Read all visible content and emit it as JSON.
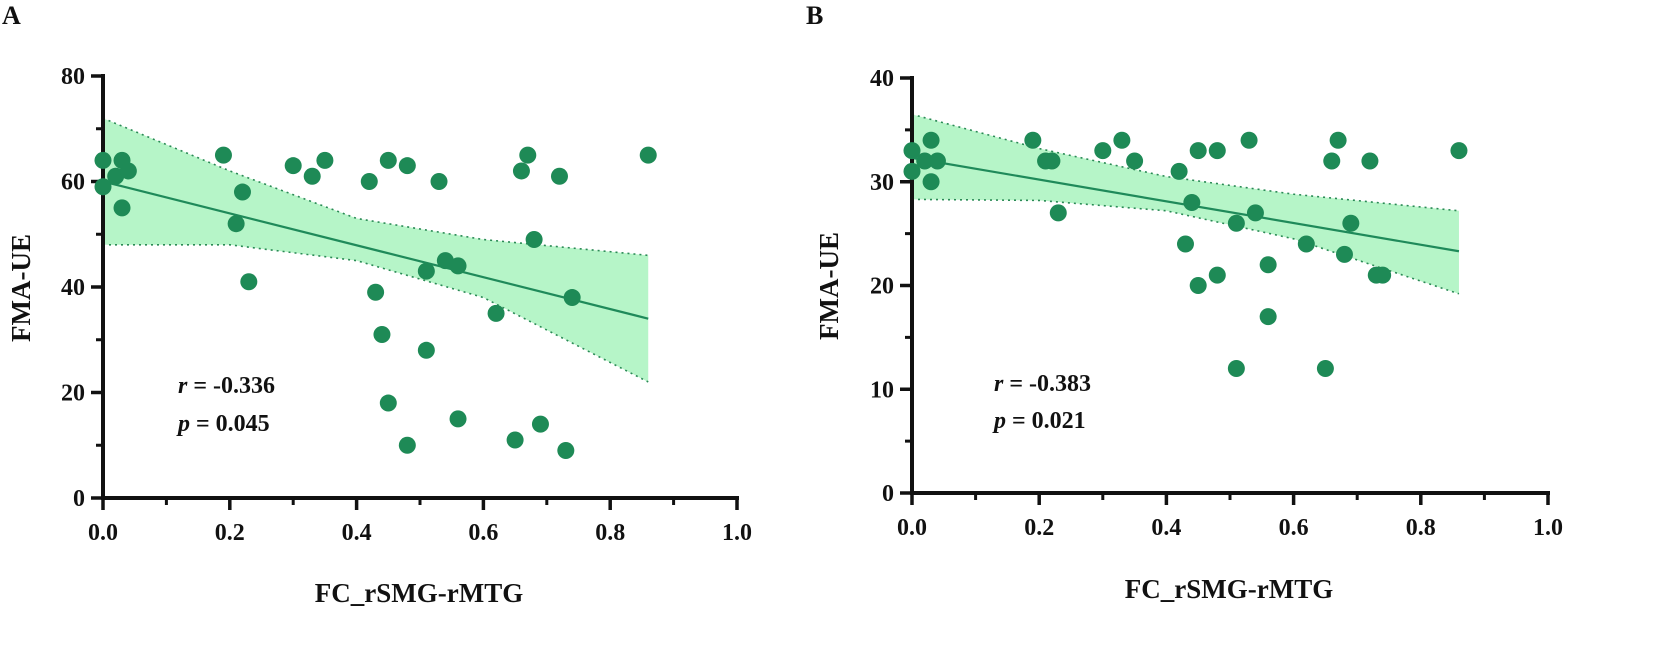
{
  "chart_data": [
    {
      "type": "scatter",
      "panel_label": "A",
      "xlabel": "FC_rSMG-rMTG",
      "ylabel": "FMA-UE",
      "xlim": [
        0,
        1.0
      ],
      "ylim": [
        0,
        80
      ],
      "x_ticks": [
        0.0,
        0.2,
        0.4,
        0.6,
        0.8,
        1.0
      ],
      "x_tick_labels": [
        "0.0",
        "0.2",
        "0.4",
        "0.6",
        "0.8",
        "1.0"
      ],
      "y_ticks": [
        0,
        20,
        40,
        60,
        80
      ],
      "y_tick_labels": [
        "0",
        "20",
        "40",
        "60",
        "80"
      ],
      "regression": {
        "x_range": [
          0,
          0.86
        ],
        "y_start": 60,
        "y_end": 34
      },
      "confidence_band": {
        "x": [
          0,
          0.2,
          0.4,
          0.6,
          0.86
        ],
        "upper": [
          72,
          62,
          53,
          49,
          46
        ],
        "lower": [
          48,
          48,
          45,
          38,
          22
        ]
      },
      "annotation": {
        "r_symbol": "r",
        "r_value": " = -0.336",
        "p_symbol": "p",
        "p_value": " = 0.045"
      },
      "points": [
        {
          "x": 0.0,
          "y": 64
        },
        {
          "x": 0.0,
          "y": 59
        },
        {
          "x": 0.02,
          "y": 61
        },
        {
          "x": 0.03,
          "y": 64
        },
        {
          "x": 0.03,
          "y": 55
        },
        {
          "x": 0.04,
          "y": 62
        },
        {
          "x": 0.19,
          "y": 65
        },
        {
          "x": 0.21,
          "y": 52
        },
        {
          "x": 0.22,
          "y": 58
        },
        {
          "x": 0.23,
          "y": 41
        },
        {
          "x": 0.3,
          "y": 63
        },
        {
          "x": 0.33,
          "y": 61
        },
        {
          "x": 0.35,
          "y": 64
        },
        {
          "x": 0.42,
          "y": 60
        },
        {
          "x": 0.43,
          "y": 39
        },
        {
          "x": 0.44,
          "y": 31
        },
        {
          "x": 0.45,
          "y": 64
        },
        {
          "x": 0.45,
          "y": 18
        },
        {
          "x": 0.48,
          "y": 63
        },
        {
          "x": 0.48,
          "y": 10
        },
        {
          "x": 0.51,
          "y": 43
        },
        {
          "x": 0.51,
          "y": 28
        },
        {
          "x": 0.53,
          "y": 60
        },
        {
          "x": 0.54,
          "y": 45
        },
        {
          "x": 0.56,
          "y": 44
        },
        {
          "x": 0.56,
          "y": 15
        },
        {
          "x": 0.62,
          "y": 35
        },
        {
          "x": 0.65,
          "y": 11
        },
        {
          "x": 0.66,
          "y": 62
        },
        {
          "x": 0.67,
          "y": 65
        },
        {
          "x": 0.68,
          "y": 49
        },
        {
          "x": 0.69,
          "y": 14
        },
        {
          "x": 0.72,
          "y": 61
        },
        {
          "x": 0.73,
          "y": 9
        },
        {
          "x": 0.74,
          "y": 38
        },
        {
          "x": 0.86,
          "y": 65
        }
      ]
    },
    {
      "type": "scatter",
      "panel_label": "B",
      "xlabel": "FC_rSMG-rMTG",
      "ylabel": "FMA-UE",
      "xlim": [
        0,
        1.0
      ],
      "ylim": [
        0,
        40
      ],
      "x_ticks": [
        0.0,
        0.2,
        0.4,
        0.6,
        0.8,
        1.0
      ],
      "x_tick_labels": [
        "0.0",
        "0.2",
        "0.4",
        "0.6",
        "0.8",
        "1.0"
      ],
      "y_ticks": [
        0,
        10,
        20,
        30,
        40
      ],
      "y_tick_labels": [
        "0",
        "10",
        "20",
        "30",
        "40"
      ],
      "regression": {
        "x_range": [
          0,
          0.86
        ],
        "y_start": 32.3,
        "y_end": 23.3
      },
      "confidence_band": {
        "x": [
          0,
          0.2,
          0.4,
          0.6,
          0.86
        ],
        "upper": [
          36.5,
          33.2,
          30.5,
          28.8,
          27.2
        ],
        "lower": [
          28.3,
          28.2,
          27.2,
          24.5,
          19.2
        ]
      },
      "annotation": {
        "r_symbol": "r",
        "r_value": " = -0.383",
        "p_symbol": "p",
        "p_value": " = 0.021"
      },
      "points": [
        {
          "x": 0.0,
          "y": 33
        },
        {
          "x": 0.0,
          "y": 31
        },
        {
          "x": 0.02,
          "y": 32
        },
        {
          "x": 0.03,
          "y": 34
        },
        {
          "x": 0.03,
          "y": 30
        },
        {
          "x": 0.04,
          "y": 32
        },
        {
          "x": 0.19,
          "y": 34
        },
        {
          "x": 0.21,
          "y": 32
        },
        {
          "x": 0.22,
          "y": 32
        },
        {
          "x": 0.23,
          "y": 27
        },
        {
          "x": 0.3,
          "y": 33
        },
        {
          "x": 0.33,
          "y": 34
        },
        {
          "x": 0.35,
          "y": 32
        },
        {
          "x": 0.42,
          "y": 31
        },
        {
          "x": 0.43,
          "y": 24
        },
        {
          "x": 0.44,
          "y": 28
        },
        {
          "x": 0.45,
          "y": 33
        },
        {
          "x": 0.45,
          "y": 20
        },
        {
          "x": 0.48,
          "y": 33
        },
        {
          "x": 0.48,
          "y": 21
        },
        {
          "x": 0.51,
          "y": 26
        },
        {
          "x": 0.51,
          "y": 12
        },
        {
          "x": 0.53,
          "y": 34
        },
        {
          "x": 0.54,
          "y": 27
        },
        {
          "x": 0.56,
          "y": 22
        },
        {
          "x": 0.56,
          "y": 17
        },
        {
          "x": 0.62,
          "y": 24
        },
        {
          "x": 0.65,
          "y": 12
        },
        {
          "x": 0.66,
          "y": 32
        },
        {
          "x": 0.67,
          "y": 34
        },
        {
          "x": 0.68,
          "y": 23
        },
        {
          "x": 0.69,
          "y": 26
        },
        {
          "x": 0.72,
          "y": 32
        },
        {
          "x": 0.73,
          "y": 21
        },
        {
          "x": 0.74,
          "y": 21
        },
        {
          "x": 0.86,
          "y": 33
        }
      ]
    }
  ]
}
